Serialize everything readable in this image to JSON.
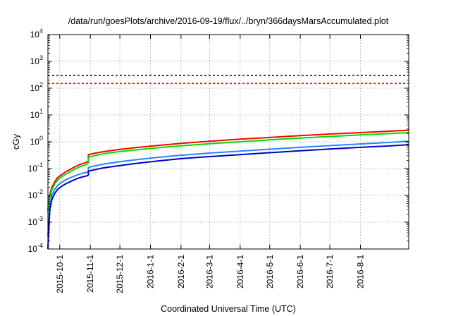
{
  "chart_data": {
    "type": "line",
    "title": "/data/run/goesPlots/archive/2016-09-19/flux/../bryn/366daysMarsAccumulated.plot",
    "xlabel": "Coordinated Universal Time (UTC)",
    "ylabel": "cGy",
    "yscale": "log",
    "ylim": [
      0.0001,
      10000
    ],
    "xlim": [
      "2015-09-19",
      "2016-09-19"
    ],
    "grid": true,
    "y_ticks": [
      {
        "value": 0.0001,
        "base": "10",
        "exp": "-4"
      },
      {
        "value": 0.001,
        "base": "10",
        "exp": "-3"
      },
      {
        "value": 0.01,
        "base": "10",
        "exp": "-2"
      },
      {
        "value": 0.1,
        "base": "10",
        "exp": "-1"
      },
      {
        "value": 1,
        "base": "10",
        "exp": "0"
      },
      {
        "value": 10,
        "base": "10",
        "exp": "1"
      },
      {
        "value": 100,
        "base": "10",
        "exp": "2"
      },
      {
        "value": 1000,
        "base": "10",
        "exp": "3"
      },
      {
        "value": 10000,
        "base": "10",
        "exp": "4"
      }
    ],
    "x_ticks": [
      {
        "date": "2015-10-01",
        "label": "2015-10-1"
      },
      {
        "date": "2015-11-01",
        "label": "2015-11-1"
      },
      {
        "date": "2015-12-01",
        "label": "2015-12-1"
      },
      {
        "date": "2016-01-01",
        "label": "2016-1-1"
      },
      {
        "date": "2016-02-01",
        "label": "2016-2-1"
      },
      {
        "date": "2016-03-01",
        "label": "2016-3-1"
      },
      {
        "date": "2016-04-01",
        "label": "2016-4-1"
      },
      {
        "date": "2016-05-01",
        "label": "2016-5-1"
      },
      {
        "date": "2016-06-01",
        "label": "2016-6-1"
      },
      {
        "date": "2016-07-01",
        "label": "2016-7-1"
      },
      {
        "date": "2016-08-01",
        "label": "2016-8-1"
      }
    ],
    "reference_lines": [
      {
        "value": 300,
        "color": "#000000",
        "style": "dashed"
      },
      {
        "value": 150,
        "color": "#ff0000",
        "style": "dashed"
      }
    ],
    "series": [
      {
        "color": "#ff0000",
        "x": [
          "2015-09-19",
          "2015-09-20",
          "2015-09-21",
          "2015-09-23",
          "2015-09-26",
          "2015-09-29",
          "2015-10-03",
          "2015-10-07",
          "2015-10-12",
          "2015-10-17",
          "2015-10-22",
          "2015-10-28",
          "2015-10-30",
          "2015-10-30",
          "2015-11-05",
          "2015-11-15",
          "2015-12-01",
          "2015-12-20",
          "2016-01-10",
          "2016-02-01",
          "2016-03-01",
          "2016-04-01",
          "2016-05-01",
          "2016-06-01",
          "2016-07-01",
          "2016-08-01",
          "2016-09-01",
          "2016-09-19"
        ],
        "y": [
          0.003,
          0.006,
          0.011,
          0.02,
          0.033,
          0.047,
          0.06,
          0.075,
          0.095,
          0.12,
          0.145,
          0.17,
          0.19,
          0.33,
          0.37,
          0.43,
          0.52,
          0.62,
          0.74,
          0.87,
          1.05,
          1.25,
          1.45,
          1.7,
          1.95,
          2.2,
          2.5,
          2.7
        ]
      },
      {
        "color": "#00dd00",
        "x": [
          "2015-09-19",
          "2015-09-20",
          "2015-09-21",
          "2015-09-23",
          "2015-09-26",
          "2015-09-29",
          "2015-10-03",
          "2015-10-07",
          "2015-10-12",
          "2015-10-17",
          "2015-10-22",
          "2015-10-28",
          "2015-10-30",
          "2015-10-30",
          "2015-11-05",
          "2015-11-15",
          "2015-12-01",
          "2015-12-20",
          "2016-01-10",
          "2016-02-01",
          "2016-03-01",
          "2016-04-01",
          "2016-05-01",
          "2016-06-01",
          "2016-07-01",
          "2016-08-01",
          "2016-09-01",
          "2016-09-19"
        ],
        "y": [
          0.0025,
          0.005,
          0.009,
          0.016,
          0.027,
          0.038,
          0.05,
          0.062,
          0.078,
          0.098,
          0.12,
          0.14,
          0.16,
          0.27,
          0.3,
          0.36,
          0.43,
          0.51,
          0.61,
          0.71,
          0.85,
          1.0,
          1.18,
          1.38,
          1.58,
          1.8,
          2.05,
          2.2
        ]
      },
      {
        "color": "#2288ff",
        "x": [
          "2015-09-19",
          "2015-09-20",
          "2015-09-21",
          "2015-09-23",
          "2015-09-26",
          "2015-09-29",
          "2015-10-03",
          "2015-10-07",
          "2015-10-12",
          "2015-10-17",
          "2015-10-22",
          "2015-10-28",
          "2015-10-30",
          "2015-10-30",
          "2015-11-05",
          "2015-11-15",
          "2015-12-01",
          "2015-12-20",
          "2016-01-10",
          "2016-02-01",
          "2016-03-01",
          "2016-04-01",
          "2016-05-01",
          "2016-06-01",
          "2016-07-01",
          "2016-08-01",
          "2016-09-01",
          "2016-09-19"
        ],
        "y": [
          0.0003,
          0.0012,
          0.004,
          0.01,
          0.017,
          0.024,
          0.031,
          0.038,
          0.046,
          0.055,
          0.064,
          0.072,
          0.077,
          0.11,
          0.125,
          0.148,
          0.18,
          0.22,
          0.265,
          0.315,
          0.38,
          0.45,
          0.53,
          0.62,
          0.72,
          0.83,
          0.95,
          1.05
        ]
      },
      {
        "color": "#0000cc",
        "x": [
          "2015-09-19",
          "2015-09-20",
          "2015-09-21",
          "2015-09-23",
          "2015-09-26",
          "2015-09-29",
          "2015-10-03",
          "2015-10-07",
          "2015-10-12",
          "2015-10-17",
          "2015-10-22",
          "2015-10-28",
          "2015-10-30",
          "2015-10-30",
          "2015-11-05",
          "2015-11-15",
          "2015-12-01",
          "2015-12-20",
          "2016-01-10",
          "2016-02-01",
          "2016-03-01",
          "2016-04-01",
          "2016-05-01",
          "2016-06-01",
          "2016-07-01",
          "2016-08-01",
          "2016-09-01",
          "2016-09-19"
        ],
        "y": [
          0.0001,
          0.0008,
          0.003,
          0.007,
          0.012,
          0.017,
          0.022,
          0.027,
          0.033,
          0.04,
          0.047,
          0.053,
          0.057,
          0.08,
          0.09,
          0.107,
          0.13,
          0.16,
          0.195,
          0.235,
          0.28,
          0.33,
          0.39,
          0.46,
          0.54,
          0.62,
          0.71,
          0.78
        ]
      }
    ]
  }
}
